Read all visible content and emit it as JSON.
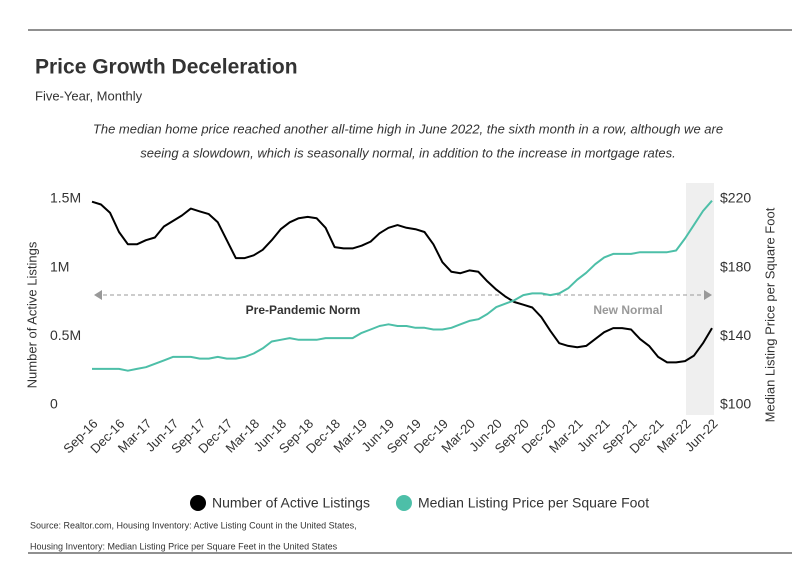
{
  "chart_data": {
    "type": "line",
    "title": "Price Growth Deceleration",
    "subtitle": "Five-Year, Monthly",
    "description": [
      "The median home price reached another all-time high in June 2022, the sixth month in a row, although we are",
      "seeing a slowdown, which is seasonally normal, in addition to the increase in mortgage rates."
    ],
    "y_label": "Number of Active Listings",
    "y2_label": "Median Listing Price per Square Foot",
    "annotations": [
      "Pre-Pandemic Norm",
      "New Normal"
    ],
    "source": [
      "Source:  Realtor.com, Housing Inventory: Active Listing Count in the United States,",
      "Housing Inventory: Median Listing Price per Square Feet in the United States"
    ],
    "categories": [
      "Sep-16",
      null,
      null,
      "Dec-16",
      null,
      null,
      "Mar-17",
      null,
      null,
      "Jun-17",
      null,
      null,
      "Sep-17",
      null,
      null,
      "Dec-17",
      null,
      null,
      "Mar-18",
      null,
      null,
      "Jun-18",
      null,
      null,
      "Sep-18",
      null,
      null,
      "Dec-18",
      null,
      null,
      "Mar-19",
      null,
      null,
      "Jun-19",
      null,
      null,
      "Sep-19",
      null,
      null,
      "Dec-19",
      null,
      null,
      "Mar-20",
      null,
      null,
      "Jun-20",
      null,
      null,
      "Sep-20",
      null,
      null,
      "Dec-20",
      null,
      null,
      "Mar-21",
      null,
      null,
      "Jun-21",
      null,
      null,
      "Sep-21",
      null,
      null,
      "Dec-21",
      null,
      null,
      "Mar-22",
      null,
      null,
      "Jun-22"
    ],
    "series": [
      {
        "name": "Number of Active Listings",
        "color": "#000000",
        "values": [
          1480000,
          1460000,
          1400000,
          1260000,
          1170000,
          1170000,
          1200000,
          1220000,
          1300000,
          1340000,
          1380000,
          1430000,
          1410000,
          1390000,
          1330000,
          1200000,
          1070000,
          1070000,
          1090000,
          1130000,
          1200000,
          1280000,
          1330000,
          1360000,
          1370000,
          1360000,
          1290000,
          1150000,
          1140000,
          1140000,
          1160000,
          1190000,
          1250000,
          1290000,
          1310000,
          1290000,
          1280000,
          1260000,
          1170000,
          1040000,
          970000,
          960000,
          980000,
          970000,
          900000,
          840000,
          790000,
          750000,
          730000,
          710000,
          640000,
          540000,
          450000,
          430000,
          420000,
          430000,
          480000,
          530000,
          560000,
          560000,
          550000,
          480000,
          430000,
          350000,
          310000,
          310000,
          320000,
          360000,
          450000,
          560000
        ]
      },
      {
        "name": "Median Listing Price per Square Foot",
        "color": "#4dbfa8",
        "axis": "y2",
        "values": [
          121,
          121,
          121,
          121,
          120,
          121,
          122,
          124,
          126,
          128,
          128,
          128,
          127,
          127,
          128,
          127,
          127,
          128,
          130,
          133,
          137,
          138,
          139,
          138,
          138,
          138,
          139,
          139,
          139,
          139,
          142,
          144,
          146,
          147,
          146,
          146,
          145,
          145,
          144,
          144,
          145,
          147,
          149,
          150,
          153,
          157,
          159,
          161,
          164,
          165,
          165,
          164,
          165,
          168,
          173,
          177,
          182,
          186,
          188,
          188,
          188,
          189,
          189,
          189,
          189,
          190,
          197,
          205,
          213,
          219
        ]
      }
    ],
    "ylim": [
      0,
      1500000
    ],
    "yticks": [
      0,
      {
        "value": 500000,
        "label": "0.5M"
      },
      {
        "value": 1000000,
        "label": "1M"
      },
      {
        "value": 1500000,
        "label": "1.5M"
      }
    ],
    "y2lim": [
      100,
      220
    ],
    "y2ticks": [
      {
        "value": 100,
        "label": "$100"
      },
      {
        "value": 140,
        "label": "$140"
      },
      {
        "value": 180,
        "label": "$180"
      },
      {
        "value": 220,
        "label": "$220"
      }
    ],
    "grid": false
  }
}
